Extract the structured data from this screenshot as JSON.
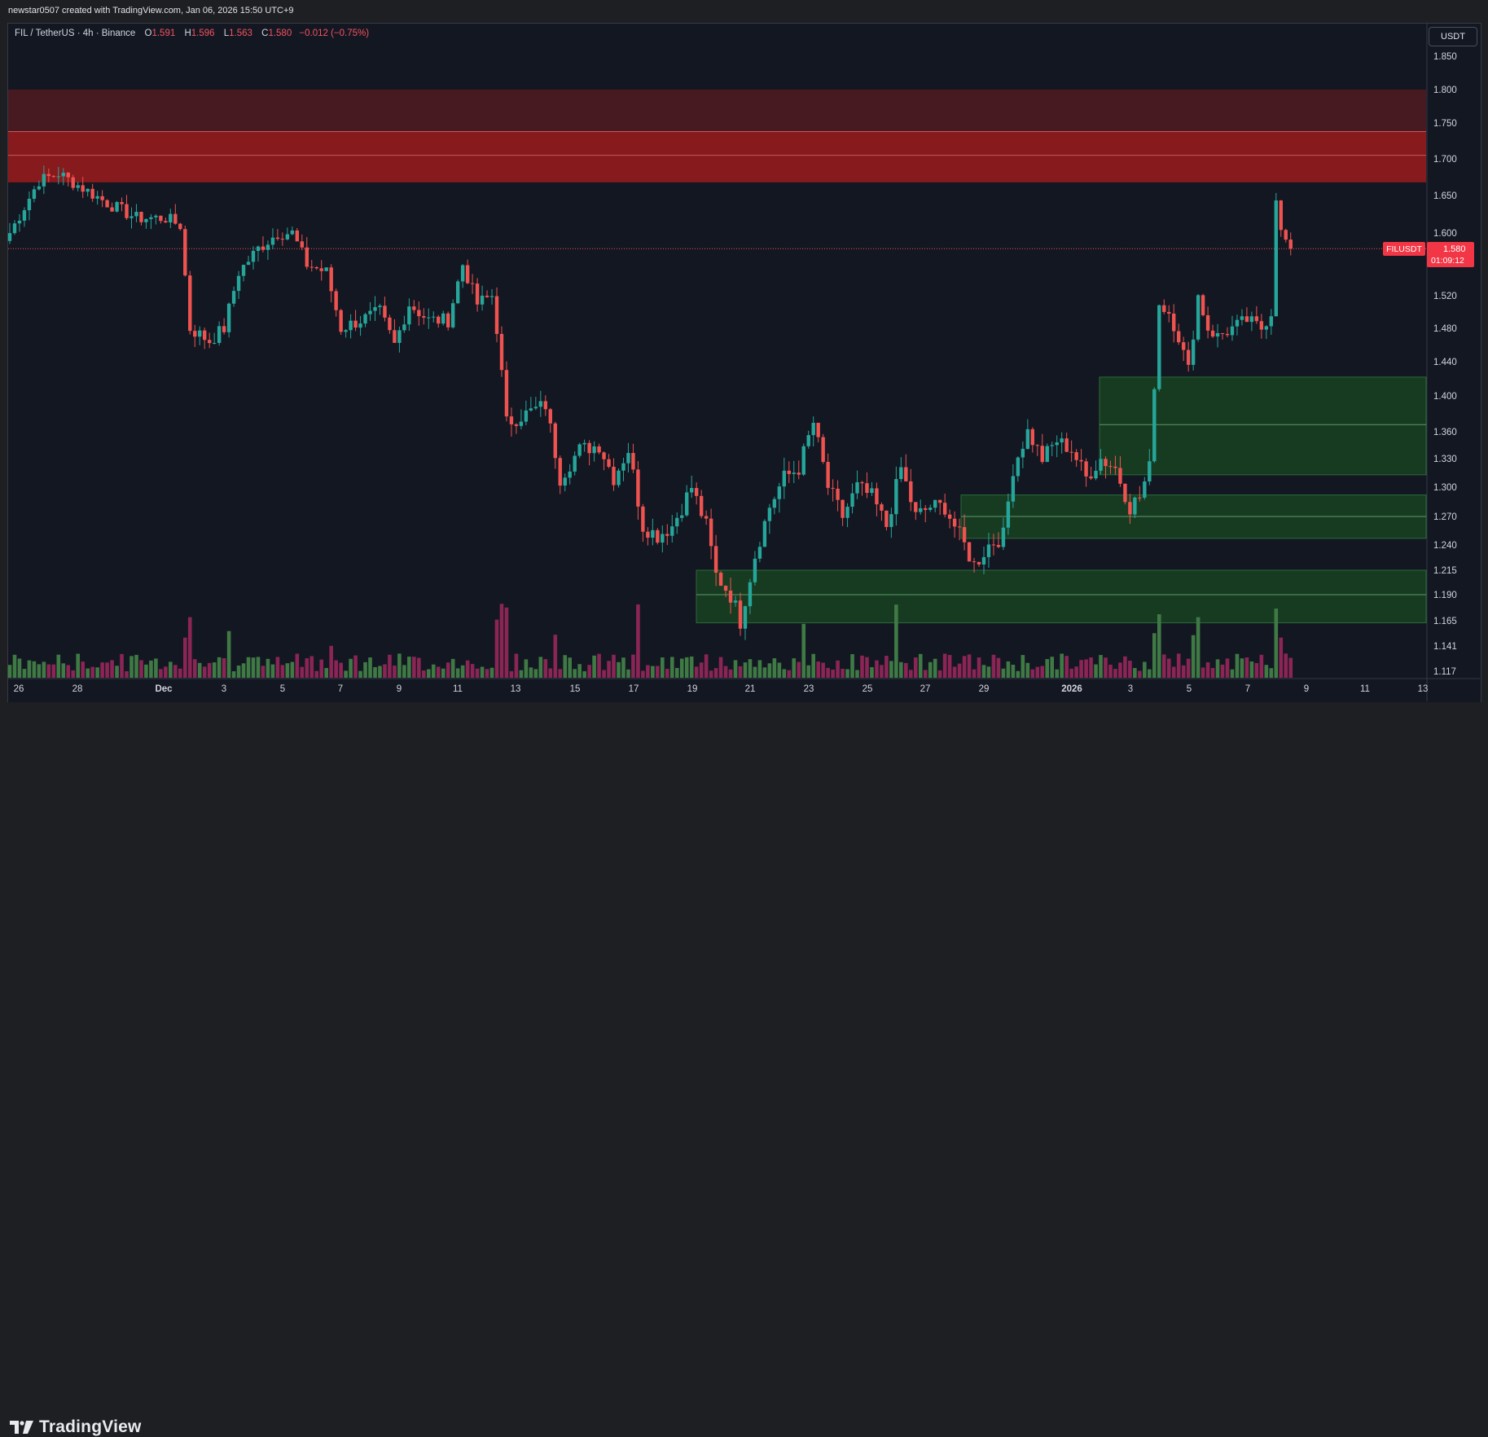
{
  "watermark": "newstar0507 created with TradingView.com, Jan 06, 2026 15:50 UTC+9",
  "legend": {
    "symbol": "FIL / TetherUS · 4h · Binance",
    "o_label": "O",
    "o_value": "1.591",
    "h_label": "H",
    "h_value": "1.596",
    "l_label": "L",
    "l_value": "1.563",
    "c_label": "C",
    "c_value": "1.580",
    "change": "−0.012 (−0.75%)"
  },
  "currency": "USDT",
  "price_tag": {
    "symbol": "FILUSDT",
    "price": "1.580",
    "countdown": "01:09:12"
  },
  "brand": "TradingView",
  "colors": {
    "up": "#26a69a",
    "down": "#ef5350",
    "bg": "#131722",
    "supply_outer": "#4a1a22",
    "supply_inner": "#8a1a1e",
    "demand": "#173d22",
    "vol_up": "#3f7a45",
    "vol_down": "#8a2555"
  },
  "chart_data": {
    "type": "candlestick",
    "symbol": "FIL / TetherUS",
    "interval": "4h",
    "exchange": "Binance",
    "last_price": 1.58,
    "y_ticks": [
      "1.850",
      "1.800",
      "1.750",
      "1.700",
      "1.650",
      "1.600",
      "1.520",
      "1.480",
      "1.440",
      "1.400",
      "1.360",
      "1.330",
      "1.300",
      "1.270",
      "1.240",
      "1.215",
      "1.190",
      "1.165",
      "1.141",
      "1.117"
    ],
    "x_ticks": [
      "26",
      "28",
      "Dec",
      "3",
      "5",
      "7",
      "9",
      "11",
      "13",
      "15",
      "17",
      "19",
      "21",
      "23",
      "25",
      "27",
      "29",
      "2026",
      "3",
      "5",
      "7",
      "9",
      "11",
      "13"
    ],
    "zones": [
      {
        "kind": "supply",
        "top": 1.8,
        "bottom": 1.668,
        "inner_top": 1.738,
        "mid": 1.705
      },
      {
        "kind": "demand",
        "top": 1.422,
        "bottom": 1.313,
        "mid": 1.368
      },
      {
        "kind": "demand",
        "top": 1.292,
        "bottom": 1.247,
        "mid": 1.27
      },
      {
        "kind": "demand",
        "top": 1.215,
        "bottom": 1.163,
        "mid": 1.19
      }
    ],
    "anchors": [
      {
        "x": 0,
        "close": 1.6
      },
      {
        "x": 6,
        "close": 1.67
      },
      {
        "x": 10,
        "close": 1.68
      },
      {
        "x": 15,
        "close": 1.66
      },
      {
        "x": 20,
        "close": 1.64
      },
      {
        "x": 26,
        "close": 1.62
      },
      {
        "x": 32,
        "close": 1.62
      },
      {
        "x": 35,
        "close": 1.61
      },
      {
        "x": 37,
        "close": 1.48
      },
      {
        "x": 41,
        "close": 1.465
      },
      {
        "x": 44,
        "close": 1.48
      },
      {
        "x": 47,
        "close": 1.55
      },
      {
        "x": 51,
        "close": 1.58
      },
      {
        "x": 55,
        "close": 1.6
      },
      {
        "x": 58,
        "close": 1.6
      },
      {
        "x": 61,
        "close": 1.56
      },
      {
        "x": 65,
        "close": 1.55
      },
      {
        "x": 68,
        "close": 1.48
      },
      {
        "x": 72,
        "close": 1.49
      },
      {
        "x": 76,
        "close": 1.5
      },
      {
        "x": 79,
        "close": 1.46
      },
      {
        "x": 82,
        "close": 1.51
      },
      {
        "x": 86,
        "close": 1.49
      },
      {
        "x": 90,
        "close": 1.49
      },
      {
        "x": 93,
        "close": 1.56
      },
      {
        "x": 96,
        "close": 1.51
      },
      {
        "x": 99,
        "close": 1.52
      },
      {
        "x": 100,
        "close": 1.48
      },
      {
        "x": 102,
        "close": 1.37
      },
      {
        "x": 106,
        "close": 1.38
      },
      {
        "x": 110,
        "close": 1.39
      },
      {
        "x": 113,
        "close": 1.31
      },
      {
        "x": 117,
        "close": 1.34
      },
      {
        "x": 121,
        "close": 1.345
      },
      {
        "x": 124,
        "close": 1.31
      },
      {
        "x": 127,
        "close": 1.34
      },
      {
        "x": 130,
        "close": 1.26
      },
      {
        "x": 133,
        "close": 1.25
      },
      {
        "x": 136,
        "close": 1.26
      },
      {
        "x": 140,
        "close": 1.3
      },
      {
        "x": 143,
        "close": 1.26
      },
      {
        "x": 145,
        "close": 1.21
      },
      {
        "x": 148,
        "close": 1.19
      },
      {
        "x": 150,
        "close": 1.165
      },
      {
        "x": 153,
        "close": 1.23
      },
      {
        "x": 156,
        "close": 1.28
      },
      {
        "x": 159,
        "close": 1.31
      },
      {
        "x": 162,
        "close": 1.32
      },
      {
        "x": 165,
        "close": 1.37
      },
      {
        "x": 168,
        "close": 1.3
      },
      {
        "x": 171,
        "close": 1.27
      },
      {
        "x": 174,
        "close": 1.3
      },
      {
        "x": 177,
        "close": 1.29
      },
      {
        "x": 180,
        "close": 1.26
      },
      {
        "x": 183,
        "close": 1.32
      },
      {
        "x": 186,
        "close": 1.27
      },
      {
        "x": 189,
        "close": 1.28
      },
      {
        "x": 192,
        "close": 1.28
      },
      {
        "x": 195,
        "close": 1.25
      },
      {
        "x": 198,
        "close": 1.22
      },
      {
        "x": 201,
        "close": 1.24
      },
      {
        "x": 204,
        "close": 1.25
      },
      {
        "x": 206,
        "close": 1.32
      },
      {
        "x": 209,
        "close": 1.36
      },
      {
        "x": 212,
        "close": 1.33
      },
      {
        "x": 215,
        "close": 1.35
      },
      {
        "x": 218,
        "close": 1.34
      },
      {
        "x": 221,
        "close": 1.31
      },
      {
        "x": 224,
        "close": 1.33
      },
      {
        "x": 227,
        "close": 1.32
      },
      {
        "x": 230,
        "close": 1.28
      },
      {
        "x": 232,
        "close": 1.29
      },
      {
        "x": 234,
        "close": 1.32
      },
      {
        "x": 236,
        "close": 1.51
      },
      {
        "x": 238,
        "close": 1.5
      },
      {
        "x": 240,
        "close": 1.47
      },
      {
        "x": 242,
        "close": 1.43
      },
      {
        "x": 244,
        "close": 1.52
      },
      {
        "x": 246,
        "close": 1.48
      },
      {
        "x": 248,
        "close": 1.47
      },
      {
        "x": 251,
        "close": 1.48
      },
      {
        "x": 254,
        "close": 1.49
      },
      {
        "x": 257,
        "close": 1.48
      },
      {
        "x": 259,
        "close": 1.5
      },
      {
        "x": 260,
        "close": 1.65
      },
      {
        "x": 261,
        "close": 1.6
      },
      {
        "x": 263,
        "close": 1.58
      }
    ]
  }
}
